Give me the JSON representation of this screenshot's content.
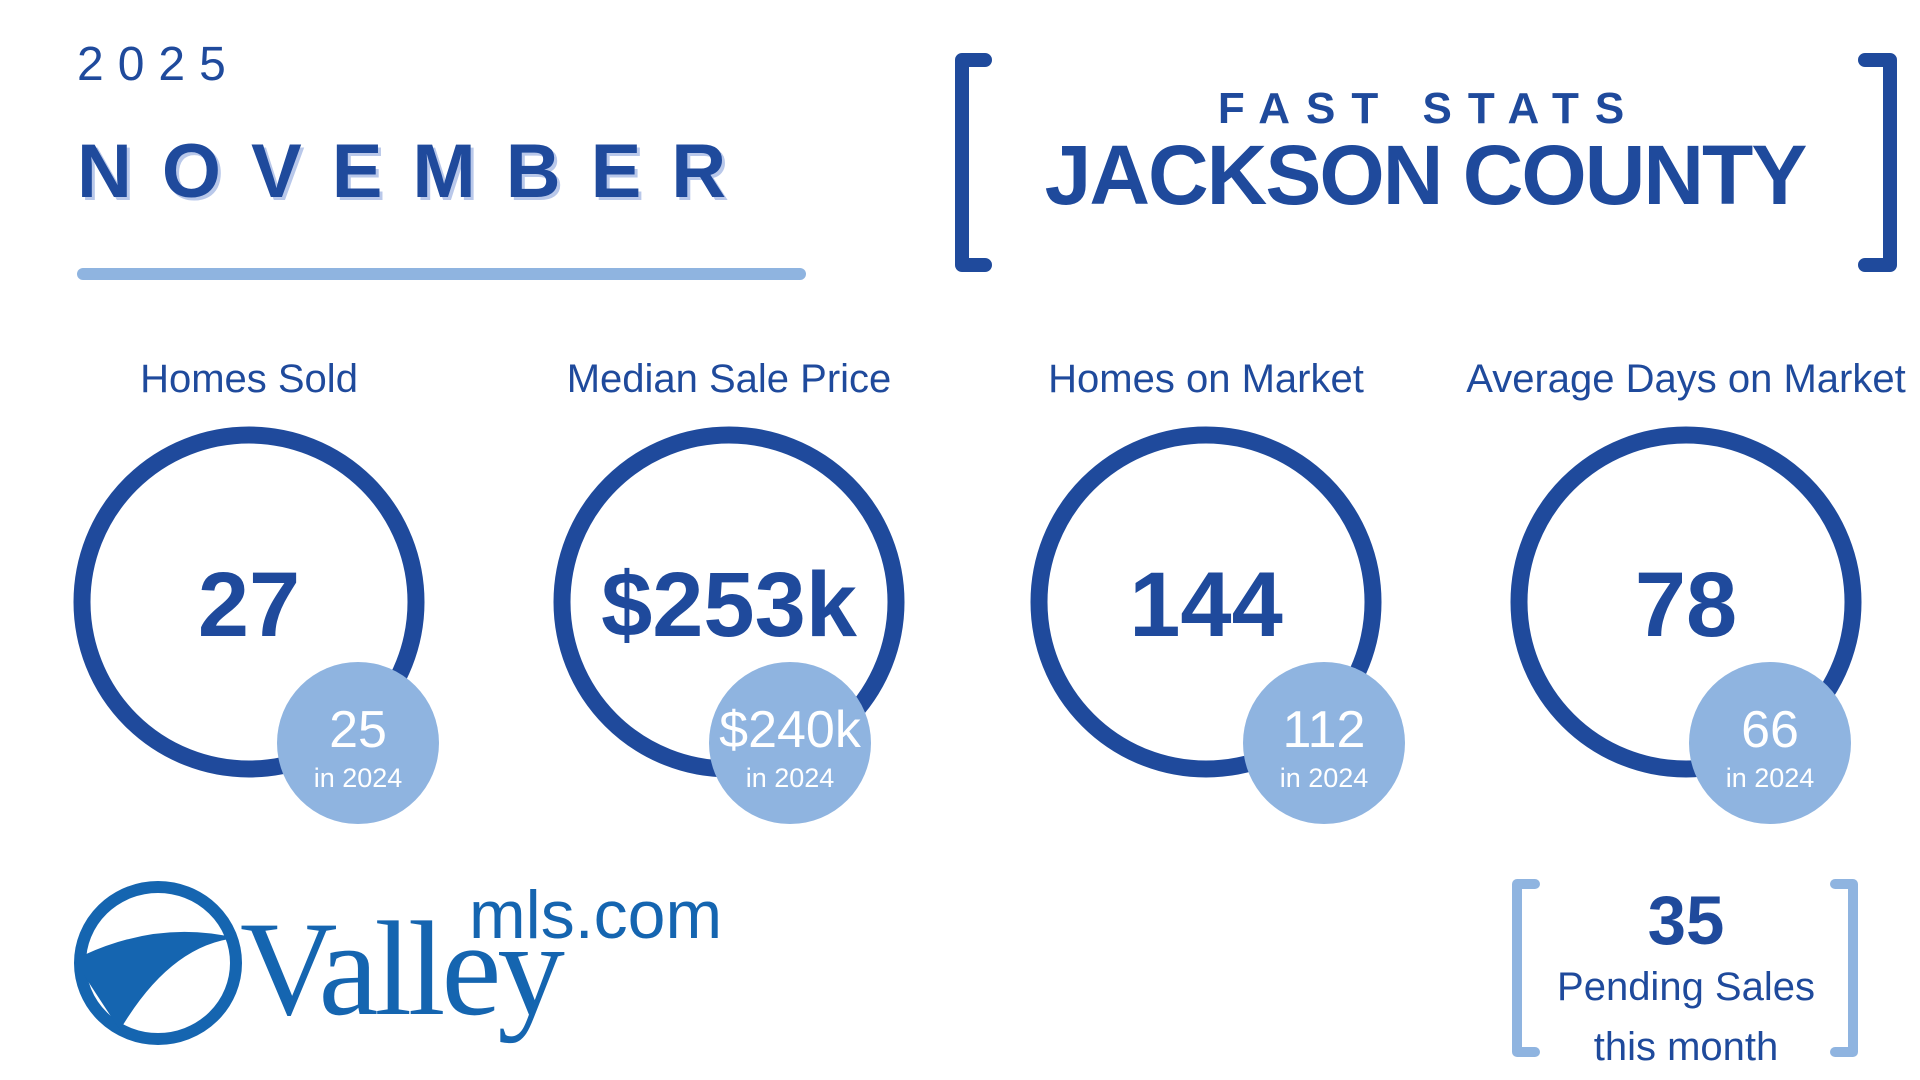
{
  "header": {
    "year": "2025",
    "month": "NOVEMBER",
    "subtitle": "FAST STATS",
    "county": "JACKSON COUNTY"
  },
  "stats": [
    {
      "label": "Homes Sold",
      "value": "27",
      "prior_value": "25",
      "prior_label": "in 2024"
    },
    {
      "label": "Median Sale Price",
      "value": "$253k",
      "prior_value": "$240k",
      "prior_label": "in 2024"
    },
    {
      "label": "Homes on Market",
      "value": "144",
      "prior_value": "112",
      "prior_label": "in 2024"
    },
    {
      "label": "Average Days on Market",
      "value": "78",
      "prior_value": "66",
      "prior_label": "in 2024"
    }
  ],
  "pending": {
    "value": "35",
    "lines": [
      "Pending Sales",
      "this month"
    ]
  },
  "logo": {
    "main": "Valley",
    "suffix": "mls.com"
  }
}
